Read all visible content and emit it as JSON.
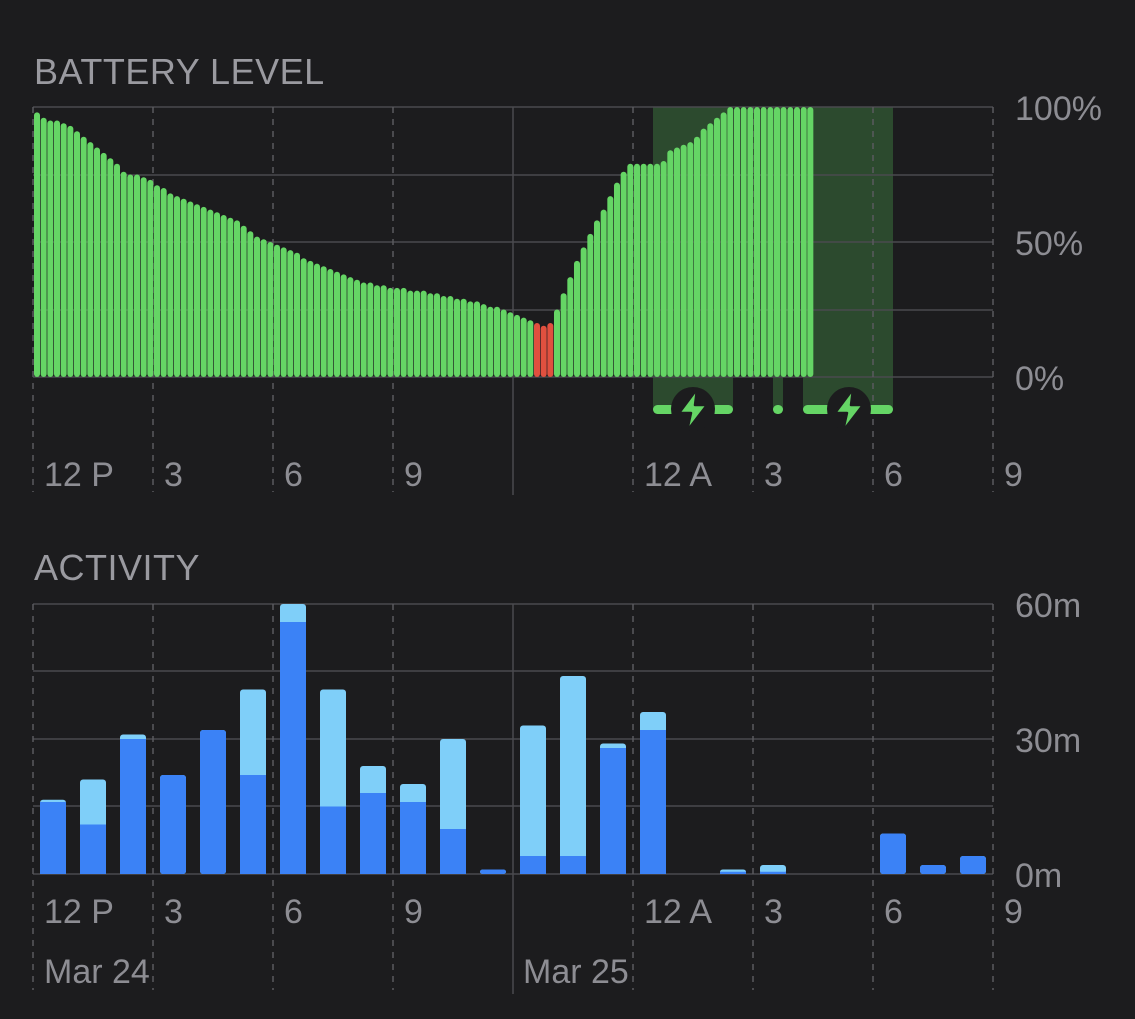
{
  "colors": {
    "background": "#1c1c1e",
    "grid_solid": "#4a4a4e",
    "grid_dashed": "#5a5a5e",
    "battery_bar": "#65d565",
    "battery_low_bar": "#e0503f",
    "charging_band": "#2c4a2e",
    "activity_screen_on": "#3b82f6",
    "activity_screen_off": "#7fcff9",
    "label": "#8d8d93"
  },
  "chart_data": [
    {
      "type": "bar",
      "title": "BATTERY LEVEL",
      "y_tick_labels": [
        "100%",
        "50%",
        "0%"
      ],
      "ylim": [
        0,
        100
      ],
      "x_tick_labels": [
        "12 P",
        "3",
        "6",
        "9",
        "12 A",
        "3",
        "6",
        "9"
      ],
      "x_start": "Mar 24 12 PM",
      "interval_minutes": 10,
      "values": [
        98,
        96,
        95,
        95,
        94,
        93,
        91,
        89,
        87,
        85,
        83,
        81,
        79,
        76,
        75,
        75,
        74,
        73,
        71,
        70,
        68,
        67,
        66,
        65,
        64,
        63,
        62,
        61,
        60,
        59,
        58,
        56,
        54,
        52,
        51,
        50,
        49,
        48,
        47,
        46,
        44,
        43,
        42,
        41,
        40,
        39,
        38,
        37,
        36,
        35,
        35,
        34,
        34,
        33,
        33,
        33,
        32,
        32,
        32,
        31,
        31,
        30,
        30,
        29,
        29,
        28,
        28,
        27,
        26,
        26,
        25,
        24,
        23,
        22,
        21,
        20,
        19,
        20,
        25,
        31,
        37,
        43,
        48,
        53,
        58,
        62,
        67,
        72,
        76,
        79,
        79,
        79,
        79,
        79,
        80,
        84,
        85,
        86,
        87,
        89,
        92,
        94,
        96,
        98,
        100,
        100,
        100,
        100,
        100,
        100,
        100,
        100,
        100,
        100,
        100,
        100,
        100
      ],
      "low_battery_indices": [
        75,
        76,
        77
      ],
      "charging_periods": [
        {
          "start": "Mar 25 3:30 AM",
          "end": "Mar 25 5:30 AM"
        },
        {
          "start": "Mar 25 6:30 AM",
          "end": "Mar 25 6:45 AM"
        },
        {
          "start": "Mar 25 7:15 AM",
          "end": "Mar 25 9:30 AM"
        }
      ],
      "charging_icon": "lightning-bolt-icon"
    },
    {
      "type": "bar",
      "title": "ACTIVITY",
      "y_tick_labels": [
        "60m",
        "30m",
        "0m"
      ],
      "ylim": [
        0,
        60
      ],
      "y_unit": "minutes",
      "x_tick_labels": [
        "12 P",
        "3",
        "6",
        "9",
        "12 A",
        "3",
        "6",
        "9"
      ],
      "date_labels": [
        "Mar 24",
        "Mar 25"
      ],
      "categories": [
        "12 PM",
        "1 PM",
        "2 PM",
        "3 PM",
        "4 PM",
        "5 PM",
        "6 PM",
        "7 PM",
        "8 PM",
        "9 PM",
        "10 PM",
        "11 PM",
        "12 AM",
        "1 AM",
        "2 AM",
        "3 AM",
        "4 AM",
        "5 AM",
        "6 AM",
        "7 AM",
        "8 AM",
        "9 AM",
        "10 AM",
        "11 AM"
      ],
      "series": [
        {
          "values": [
            16,
            11,
            30,
            22,
            32,
            22,
            56,
            15,
            18,
            16,
            10,
            1,
            4,
            4,
            28,
            32,
            0,
            0.5,
            0.5,
            0,
            0,
            9,
            2,
            4
          ]
        },
        {
          "values": [
            0.5,
            10,
            1,
            0,
            0,
            19,
            4,
            26,
            6,
            4,
            20,
            0,
            29,
            40,
            1,
            4,
            0,
            0.5,
            1.5,
            0,
            0,
            0,
            0,
            0
          ]
        }
      ]
    }
  ]
}
